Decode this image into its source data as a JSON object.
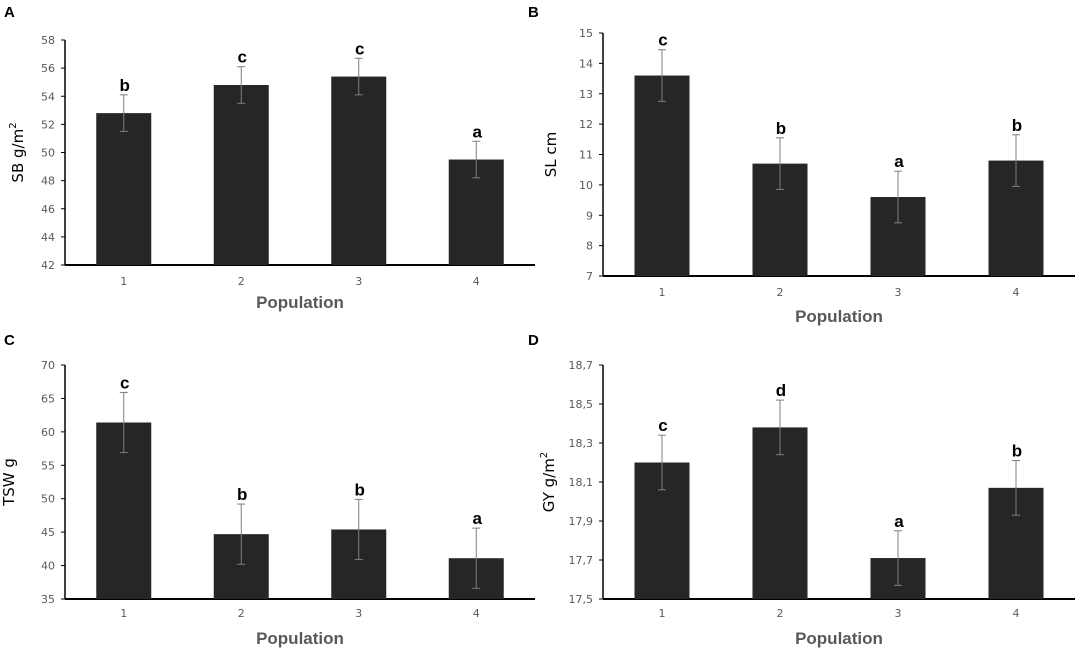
{
  "chart_data": [
    {
      "type": "bar",
      "panel": "A",
      "title": "",
      "xlabel": "Population",
      "ylabel_main": "SB g/m",
      "ylabel_sup": "2",
      "categories": [
        "1",
        "2",
        "3",
        "4"
      ],
      "values": [
        52.8,
        54.8,
        55.4,
        49.5
      ],
      "errors": [
        1.3,
        1.3,
        1.3,
        1.3
      ],
      "letters": [
        "b",
        "c",
        "c",
        "a"
      ],
      "ylim": [
        42,
        58
      ],
      "yticks": [
        "42",
        "44",
        "46",
        "48",
        "50",
        "52",
        "54",
        "56",
        "58"
      ],
      "bar_color": "#262626"
    },
    {
      "type": "bar",
      "panel": "B",
      "title": "",
      "xlabel": "Population",
      "ylabel_main": "SL cm",
      "ylabel_sup": "",
      "categories": [
        "1",
        "2",
        "3",
        "4"
      ],
      "values": [
        13.6,
        10.7,
        9.6,
        10.8
      ],
      "errors": [
        0.85,
        0.85,
        0.85,
        0.85
      ],
      "letters": [
        "c",
        "b",
        "a",
        "b"
      ],
      "ylim": [
        7,
        15
      ],
      "yticks": [
        "7",
        "8",
        "9",
        "10",
        "11",
        "12",
        "13",
        "14",
        "15"
      ],
      "bar_color": "#262626"
    },
    {
      "type": "bar",
      "panel": "C",
      "title": "",
      "xlabel": "Population",
      "ylabel_main": "TSW g",
      "ylabel_sup": "",
      "categories": [
        "1",
        "2",
        "3",
        "4"
      ],
      "values": [
        61.4,
        44.7,
        45.4,
        41.1
      ],
      "errors": [
        4.5,
        4.5,
        4.5,
        4.5
      ],
      "letters": [
        "c",
        "b",
        "b",
        "a"
      ],
      "ylim": [
        35,
        70
      ],
      "yticks": [
        "35",
        "40",
        "45",
        "50",
        "55",
        "60",
        "65",
        "70"
      ],
      "bar_color": "#262626"
    },
    {
      "type": "bar",
      "panel": "D",
      "title": "",
      "xlabel": "Population",
      "ylabel_main": "GY g/m",
      "ylabel_sup": "2",
      "categories": [
        "1",
        "2",
        "3",
        "4"
      ],
      "values": [
        18.2,
        18.38,
        17.71,
        18.07
      ],
      "errors": [
        0.14,
        0.14,
        0.14,
        0.14
      ],
      "letters": [
        "c",
        "d",
        "a",
        "b"
      ],
      "ylim": [
        17.5,
        18.7
      ],
      "yticks": [
        "17,5",
        "17,7",
        "17,9",
        "18,1",
        "18,3",
        "18,5",
        "18,7"
      ],
      "bar_color": "#262626"
    }
  ]
}
